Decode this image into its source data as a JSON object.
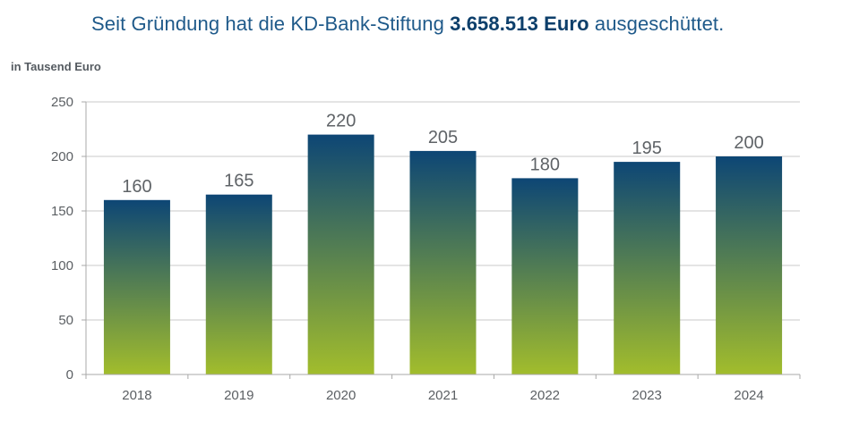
{
  "header": {
    "text_before": "Seit Gründung hat die KD-Bank-Stiftung ",
    "amount": "3.658.513 Euro",
    "text_after": " ausgeschüttet."
  },
  "chart_data": {
    "type": "bar",
    "ylabel": "in Tausend Euro",
    "categories": [
      "2018",
      "2019",
      "2020",
      "2021",
      "2022",
      "2023",
      "2024"
    ],
    "values": [
      160,
      165,
      220,
      205,
      180,
      195,
      200
    ],
    "value_labels": [
      "160",
      "165",
      "220",
      "205",
      "180",
      "195",
      "200"
    ],
    "ylim": [
      0,
      250
    ],
    "yticks": [
      0,
      50,
      100,
      150,
      200,
      250
    ],
    "ytick_labels": [
      "0",
      "50",
      "100",
      "150",
      "200",
      "250"
    ],
    "grid": true,
    "legend": "none",
    "bar_gradient": {
      "top": "#0d4675",
      "bottom": "#a2bd2c"
    },
    "grid_color": "#c9c9c9",
    "axis_color": "#a8a8a8"
  }
}
